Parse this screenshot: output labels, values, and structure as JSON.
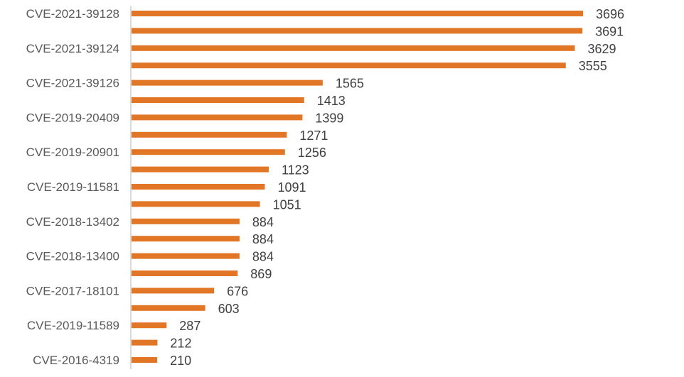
{
  "chart_data": {
    "type": "bar",
    "orientation": "horizontal",
    "title": "",
    "xlabel": "",
    "ylabel": "",
    "categories": [
      "CVE-2021-39128",
      "",
      "CVE-2021-39124",
      "",
      "CVE-2021-39126",
      "",
      "CVE-2019-20409",
      "",
      "CVE-2019-20901",
      "",
      "CVE-2019-11581",
      "",
      "CVE-2018-13402",
      "",
      "CVE-2018-13400",
      "",
      "CVE-2017-18101",
      "",
      "CVE-2019-11589",
      "",
      "CVE-2016-4319"
    ],
    "values": [
      3696,
      3691,
      3629,
      3555,
      1565,
      1413,
      1399,
      1271,
      1256,
      1123,
      1091,
      1051,
      884,
      884,
      884,
      869,
      676,
      603,
      287,
      212,
      210
    ],
    "xlim": [
      0,
      3696
    ],
    "grid": false,
    "data_labels": true,
    "bar_color": "#E07626",
    "axis_color": "#D9D9D9"
  }
}
